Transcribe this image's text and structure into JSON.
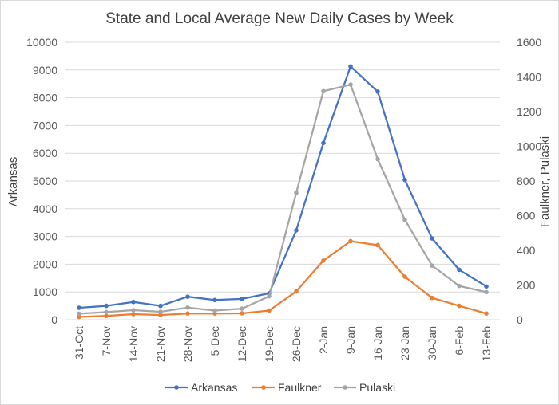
{
  "chart_data": {
    "type": "line",
    "title": "State and Local Average New Daily Cases by Week",
    "categories": [
      "31-Oct",
      "7-Nov",
      "14-Nov",
      "21-Nov",
      "28-Nov",
      "5-Dec",
      "12-Dec",
      "19-Dec",
      "26-Dec",
      "2-Jan",
      "9-Jan",
      "16-Jan",
      "23-Jan",
      "30-Jan",
      "6-Feb",
      "13-Feb"
    ],
    "ylabel_left": "Arkansas",
    "ylabel_right": "Faulkner, Pulaski",
    "ylim_left": [
      0,
      10000
    ],
    "ylim_right": [
      0,
      1600
    ],
    "yticks_left": [
      "0",
      "1000",
      "2000",
      "3000",
      "4000",
      "5000",
      "6000",
      "7000",
      "8000",
      "9000",
      "10000"
    ],
    "yticks_right": [
      "0",
      "200",
      "400",
      "600",
      "800",
      "1000",
      "1200",
      "1400",
      "1600"
    ],
    "grid": true,
    "legend_position": "bottom",
    "series": [
      {
        "name": "Arkansas",
        "axis": "left",
        "color": "#4472c4",
        "values": [
          430,
          500,
          640,
          500,
          830,
          710,
          750,
          950,
          3220,
          6370,
          9130,
          8220,
          5040,
          2930,
          1800,
          1200
        ]
      },
      {
        "name": "Faulkner",
        "axis": "right",
        "color": "#ed7d31",
        "values": [
          16,
          22,
          32,
          27,
          36,
          36,
          37,
          53,
          163,
          341,
          453,
          430,
          248,
          126,
          80,
          36
        ]
      },
      {
        "name": "Pulaski",
        "axis": "right",
        "color": "#a5a5a5",
        "values": [
          35,
          44,
          55,
          46,
          70,
          53,
          64,
          135,
          732,
          1318,
          1356,
          926,
          576,
          312,
          195,
          159
        ]
      }
    ]
  }
}
